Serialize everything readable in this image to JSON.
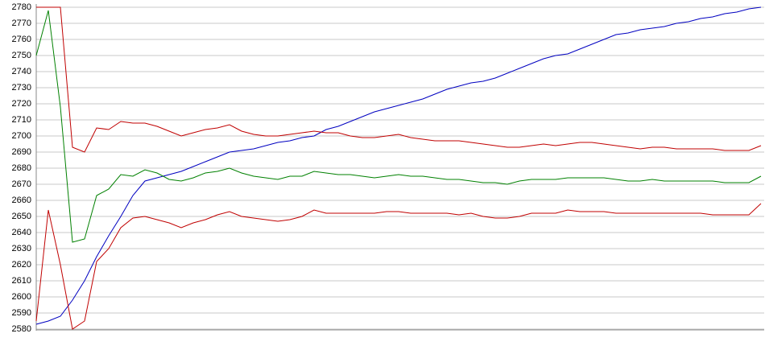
{
  "chart_data": {
    "type": "line",
    "categories": [
      null,
      null,
      null,
      null,
      null,
      null,
      null,
      null,
      null,
      null,
      null,
      null,
      null,
      null,
      null,
      null,
      null,
      null,
      null,
      null,
      null,
      null,
      null,
      null,
      null,
      null,
      null,
      null,
      null,
      null,
      null,
      null,
      null,
      null,
      null,
      null,
      null,
      null,
      null,
      null,
      null,
      null,
      null,
      null,
      null,
      null,
      null,
      null,
      null,
      null,
      null,
      null,
      null,
      null,
      null,
      null,
      null,
      null,
      null,
      null,
      null
    ],
    "series": [
      {
        "color": "#0000c0",
        "values": [
          2583,
          2585,
          2588,
          2598,
          2610,
          2625,
          2638,
          2650,
          2663,
          2672,
          2674,
          2676,
          2678,
          2681,
          2684,
          2687,
          2690,
          2691,
          2692,
          2694,
          2696,
          2697,
          2699,
          2700,
          2704,
          2706,
          2709,
          2712,
          2715,
          2717,
          2719,
          2721,
          2723,
          2726,
          2729,
          2731,
          2733,
          2734,
          2736,
          2739,
          2742,
          2745,
          2748,
          2750,
          2751,
          2754,
          2757,
          2760,
          2763,
          2764,
          2766,
          2767,
          2768,
          2770,
          2771,
          2773,
          2774,
          2776,
          2777,
          2779,
          2780
        ]
      },
      {
        "color": "#008000",
        "values": [
          2750,
          2778,
          2718,
          2634,
          2636,
          2663,
          2667,
          2676,
          2675,
          2679,
          2677,
          2673,
          2672,
          2674,
          2677,
          2678,
          2680,
          2677,
          2675,
          2674,
          2673,
          2675,
          2675,
          2678,
          2677,
          2676,
          2676,
          2675,
          2674,
          2675,
          2676,
          2675,
          2675,
          2674,
          2673,
          2673,
          2672,
          2671,
          2671,
          2670,
          2672,
          2673,
          2673,
          2673,
          2674,
          2674,
          2674,
          2674,
          2673,
          2672,
          2672,
          2673,
          2672,
          2672,
          2672,
          2672,
          2672,
          2671,
          2671,
          2671,
          2675
        ]
      },
      {
        "color": "#c00000",
        "values": [
          2780,
          2780,
          2780,
          2693,
          2690,
          2705,
          2704,
          2709,
          2708,
          2708,
          2706,
          2703,
          2700,
          2702,
          2704,
          2705,
          2707,
          2703,
          2701,
          2700,
          2700,
          2701,
          2702,
          2703,
          2702,
          2702,
          2700,
          2699,
          2699,
          2700,
          2701,
          2699,
          2698,
          2697,
          2697,
          2697,
          2696,
          2695,
          2694,
          2693,
          2693,
          2694,
          2695,
          2694,
          2695,
          2696,
          2696,
          2695,
          2694,
          2693,
          2692,
          2693,
          2693,
          2692,
          2692,
          2692,
          2692,
          2691,
          2691,
          2691,
          2694
        ]
      },
      {
        "color": "#c00000",
        "values": [
          2585,
          2654,
          2620,
          2580,
          2585,
          2622,
          2630,
          2643,
          2649,
          2650,
          2648,
          2646,
          2643,
          2646,
          2648,
          2651,
          2653,
          2650,
          2649,
          2648,
          2647,
          2648,
          2650,
          2654,
          2652,
          2652,
          2652,
          2652,
          2652,
          2653,
          2653,
          2652,
          2652,
          2652,
          2652,
          2651,
          2652,
          2650,
          2649,
          2649,
          2650,
          2652,
          2652,
          2652,
          2654,
          2653,
          2653,
          2653,
          2652,
          2652,
          2652,
          2652,
          2652,
          2652,
          2652,
          2652,
          2651,
          2651,
          2651,
          2651,
          2658
        ]
      }
    ],
    "ylim": [
      2580,
      2780
    ],
    "yticks": [
      2580,
      2590,
      2600,
      2610,
      2620,
      2630,
      2640,
      2650,
      2660,
      2670,
      2680,
      2690,
      2700,
      2710,
      2720,
      2730,
      2740,
      2750,
      2760,
      2770,
      2780
    ],
    "grid": true
  }
}
